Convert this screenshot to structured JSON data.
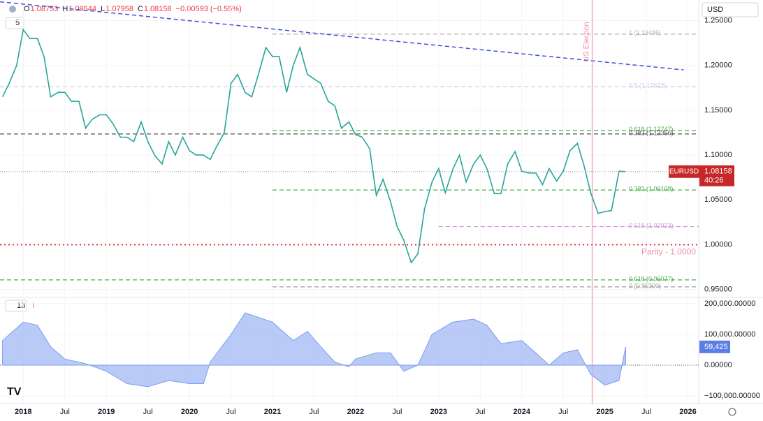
{
  "symbol_currency": "USD",
  "ohlc": [
    {
      "label": "O",
      "value": 1.08753
    },
    {
      "label": "H",
      "value": 1.09544
    },
    {
      "label": "L",
      "value": 1.07958
    },
    {
      "label": "C",
      "value": 1.08158
    }
  ],
  "change": "−0.00593 (−0.55%)",
  "pane_setting": "5",
  "timer": "40:26",
  "chart_data": [
    {
      "type": "line",
      "xlim": [
        2017.72,
        2026.13
      ],
      "ylim": [
        0.942,
        1.273
      ],
      "xticks": [
        2018,
        {
          "value": 2018.5,
          "label": "Jul"
        },
        2019,
        {
          "value": 2019.5,
          "label": "Jul"
        },
        2020,
        {
          "value": 2020.5,
          "label": "Jul"
        },
        2021,
        {
          "value": 2021.5,
          "label": "Jul"
        },
        2022,
        {
          "value": 2022.5,
          "label": "Jul"
        },
        2023,
        {
          "value": 2023.5,
          "label": "Jul"
        },
        2024,
        {
          "value": 2024.5,
          "label": "Jul"
        },
        2025,
        {
          "value": 2025.5,
          "label": "Jul"
        },
        2026
      ],
      "yticks": [
        {
          "value": 1.25,
          "label": "1.25000"
        },
        {
          "value": 1.2,
          "label": "1.20000"
        },
        {
          "value": 1.15,
          "label": "1.15000"
        },
        {
          "value": 1.1,
          "label": "1.10000"
        },
        {
          "value": 1.05,
          "label": "1.05000"
        },
        {
          "value": 1.0,
          "label": "1.00000"
        },
        {
          "value": 0.95,
          "label": "0.95000"
        }
      ],
      "series": [
        {
          "name": "EURUSD",
          "color": "#26a69a",
          "x": [
            2017.75,
            2017.83,
            2017.92,
            2018.0,
            2018.08,
            2018.17,
            2018.25,
            2018.33,
            2018.42,
            2018.5,
            2018.58,
            2018.67,
            2018.75,
            2018.83,
            2018.92,
            2019.0,
            2019.08,
            2019.17,
            2019.25,
            2019.33,
            2019.42,
            2019.5,
            2019.58,
            2019.67,
            2019.75,
            2019.83,
            2019.92,
            2020.0,
            2020.08,
            2020.17,
            2020.25,
            2020.33,
            2020.42,
            2020.5,
            2020.58,
            2020.67,
            2020.75,
            2020.83,
            2020.92,
            2021.0,
            2021.08,
            2021.17,
            2021.25,
            2021.33,
            2021.42,
            2021.5,
            2021.58,
            2021.67,
            2021.75,
            2021.83,
            2021.92,
            2022.0,
            2022.08,
            2022.17,
            2022.25,
            2022.33,
            2022.42,
            2022.5,
            2022.58,
            2022.67,
            2022.75,
            2022.83,
            2022.92,
            2023.0,
            2023.08,
            2023.17,
            2023.25,
            2023.33,
            2023.42,
            2023.5,
            2023.58,
            2023.67,
            2023.75,
            2023.83,
            2023.92,
            2024.0,
            2024.08,
            2024.17,
            2024.25,
            2024.33,
            2024.42,
            2024.5,
            2024.58,
            2024.67,
            2024.75,
            2024.83,
            2024.92,
            2025.0,
            2025.08,
            2025.17,
            2025.25
          ],
          "values": [
            1.165,
            1.18,
            1.2,
            1.24,
            1.23,
            1.23,
            1.21,
            1.165,
            1.17,
            1.17,
            1.16,
            1.16,
            1.13,
            1.14,
            1.145,
            1.145,
            1.135,
            1.12,
            1.12,
            1.115,
            1.137,
            1.115,
            1.1,
            1.09,
            1.115,
            1.1,
            1.12,
            1.105,
            1.1,
            1.1,
            1.095,
            1.11,
            1.125,
            1.18,
            1.19,
            1.17,
            1.165,
            1.19,
            1.22,
            1.21,
            1.21,
            1.17,
            1.2,
            1.22,
            1.19,
            1.185,
            1.18,
            1.16,
            1.155,
            1.13,
            1.137,
            1.123,
            1.12,
            1.107,
            1.055,
            1.073,
            1.048,
            1.02,
            1.005,
            0.98,
            0.99,
            1.04,
            1.07,
            1.085,
            1.058,
            1.084,
            1.1,
            1.07,
            1.09,
            1.1,
            1.085,
            1.057,
            1.057,
            1.09,
            1.104,
            1.082,
            1.08,
            1.08,
            1.067,
            1.085,
            1.071,
            1.082,
            1.105,
            1.113,
            1.088,
            1.058,
            1.035,
            1.037,
            1.038,
            1.082,
            1.08158
          ]
        }
      ],
      "last_price": 1.08158,
      "levels": [
        {
          "label": "1 (1.23495)",
          "value": 1.23495,
          "color": "#b5b5b5",
          "from": 2021.0
        },
        {
          "label": "0.5 (1.17622)",
          "value": 1.17622,
          "color": "#d8c6ee",
          "from": 2017.72
        },
        {
          "label": "0.618 (1.12747)",
          "value": 1.12747,
          "color": "#4caf50",
          "from": 2021.0
        },
        {
          "label": "0.382 (1.12356)",
          "value": 1.12356,
          "color": "#555555",
          "from": 2017.72
        },
        {
          "label": "0.382 (1.06108)",
          "value": 1.06108,
          "color": "#4caf50",
          "from": 2021.0
        },
        {
          "label": "0.618 (1.02022)",
          "value": 1.02022,
          "color": "#ce93d8",
          "from": 2023.0
        },
        {
          "label": "0.618 (0.96077)",
          "value": 0.96077,
          "color": "#4caf50",
          "from": 2017.72
        },
        {
          "label": "0 (0.95300)",
          "value": 0.953,
          "color": "#9e9e9e",
          "from": 2021.0
        }
      ],
      "parity": {
        "label": "Parity - 1.0000",
        "value": 1.0,
        "color": "#e53935"
      },
      "trendline": {
        "x": [
          2017.72,
          2025.95
        ],
        "y": [
          1.271,
          1.195
        ],
        "color": "#3f51d8"
      },
      "event": {
        "label": "US Election",
        "x": 2024.85,
        "color": "#f48fb1"
      }
    },
    {
      "type": "area",
      "indicator_label": "13",
      "xlim": [
        2017.72,
        2026.13
      ],
      "ylim": [
        -118000,
        218000
      ],
      "yticks": [
        {
          "value": 200000,
          "label": "200,000.00000"
        },
        {
          "value": 100000,
          "label": "100,000.00000"
        },
        {
          "value": 0,
          "label": "0.00000"
        },
        {
          "value": -100000,
          "label": "−100,000.00000"
        }
      ],
      "series": [
        {
          "name": "13",
          "color": "#7b9cf0",
          "x": [
            2017.75,
            2018.0,
            2018.17,
            2018.33,
            2018.5,
            2018.75,
            2019.0,
            2019.25,
            2019.5,
            2019.75,
            2020.0,
            2020.17,
            2020.25,
            2020.5,
            2020.67,
            2021.0,
            2021.25,
            2021.42,
            2021.58,
            2021.75,
            2021.92,
            2022.0,
            2022.25,
            2022.42,
            2022.58,
            2022.75,
            2022.92,
            2023.17,
            2023.42,
            2023.58,
            2023.75,
            2024.0,
            2024.17,
            2024.33,
            2024.5,
            2024.67,
            2024.83,
            2025.0,
            2025.17,
            2025.25
          ],
          "values": [
            80000,
            140000,
            130000,
            60000,
            20000,
            5000,
            -20000,
            -60000,
            -70000,
            -50000,
            -60000,
            -60000,
            10000,
            100000,
            170000,
            140000,
            80000,
            110000,
            60000,
            10000,
            -5000,
            20000,
            40000,
            40000,
            -20000,
            0,
            100000,
            140000,
            150000,
            130000,
            70000,
            80000,
            40000,
            0,
            40000,
            50000,
            -30000,
            -65000,
            -50000,
            59425
          ]
        }
      ],
      "last_value": 59425,
      "last_label": "59,425"
    }
  ]
}
